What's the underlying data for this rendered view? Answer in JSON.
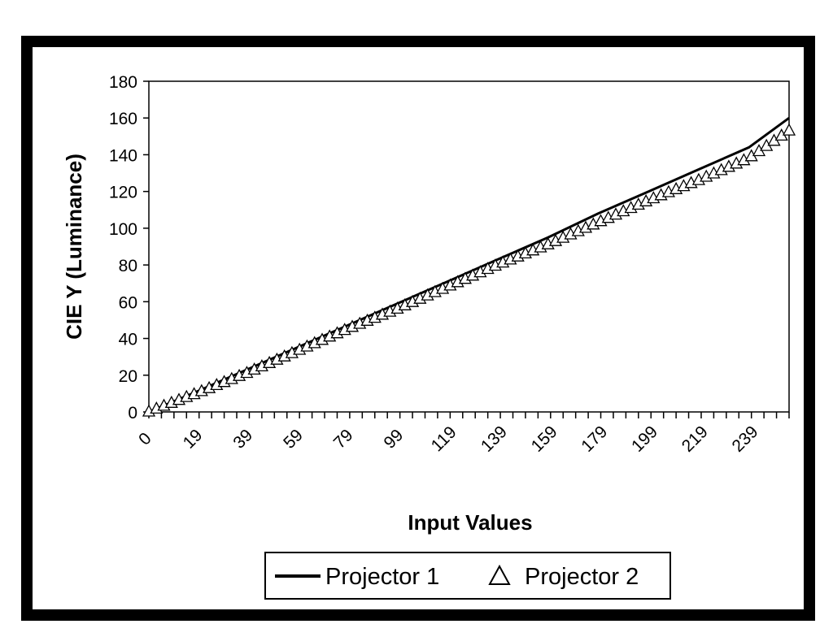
{
  "chart_data": {
    "type": "line",
    "title": "",
    "xlabel": "Input Values",
    "ylabel": "CIE Y (Luminance)",
    "xlim": [
      0,
      255
    ],
    "ylim": [
      0,
      180
    ],
    "y_ticks": [
      0,
      20,
      40,
      60,
      80,
      100,
      120,
      140,
      160,
      180
    ],
    "x_tick_labels": [
      "0",
      "19",
      "39",
      "59",
      "79",
      "99",
      "119",
      "139",
      "159",
      "179",
      "199",
      "219",
      "239"
    ],
    "grid": false,
    "legend_position": "bottom",
    "series": [
      {
        "name": "Projector 1",
        "marker": "line",
        "x": [
          0,
          19,
          39,
          59,
          79,
          99,
          119,
          139,
          159,
          179,
          199,
          219,
          239,
          255
        ],
        "y": [
          0,
          11,
          23,
          35,
          47,
          59,
          71,
          83,
          95,
          108,
          120,
          132,
          144,
          160
        ]
      },
      {
        "name": "Projector 2",
        "marker": "triangle",
        "x": [
          0,
          19,
          39,
          59,
          79,
          99,
          119,
          139,
          159,
          179,
          199,
          219,
          239,
          255
        ],
        "y": [
          0,
          10,
          21,
          33,
          45,
          56,
          68,
          80,
          91,
          103,
          115,
          126,
          138,
          153
        ]
      }
    ]
  }
}
